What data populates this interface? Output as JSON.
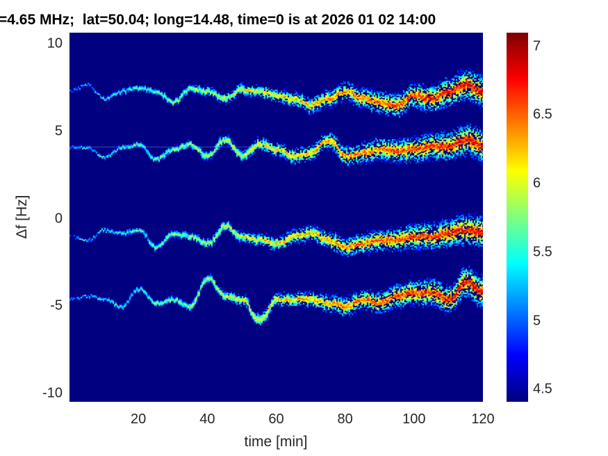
{
  "chart_data": {
    "type": "heatmap",
    "title": "=4.65 MHz;  lat=50.04; long=14.48, time=0 is at 2026 01 02 14:00",
    "xlabel": "time [min]",
    "ylabel": "Δf [Hz]",
    "xlim": [
      0,
      120
    ],
    "ylim": [
      -10.48,
      10.64
    ],
    "xticks": [
      20,
      40,
      60,
      80,
      100,
      120
    ],
    "yticks": [
      10,
      5,
      0,
      -5,
      -10
    ],
    "xtick_labels": [
      "20",
      "40",
      "60",
      "80",
      "100",
      "120"
    ],
    "ytick_labels": [
      "10",
      "5",
      "0",
      "-5",
      "-10"
    ],
    "colormap": "jet",
    "clim": [
      4.41,
      7.1
    ],
    "colorbar_ticks": [
      7,
      6.5,
      6,
      5.5,
      5,
      4.5
    ],
    "colorbar_tick_labels": [
      "7",
      "6.5",
      "6",
      "5.5",
      "5",
      "4.5"
    ],
    "trace_times": [
      0,
      5,
      10,
      15,
      20,
      25,
      30,
      35,
      40,
      45,
      50,
      55,
      60,
      65,
      70,
      75,
      80,
      85,
      90,
      95,
      100,
      105,
      110,
      115,
      120
    ],
    "traces": [
      {
        "name": "trace-1",
        "df": [
          7.3,
          7.7,
          6.9,
          7.3,
          7.5,
          7.3,
          6.7,
          7.5,
          7.3,
          6.9,
          7.4,
          7.3,
          7.1,
          6.9,
          6.5,
          6.9,
          7.3,
          6.9,
          6.7,
          6.5,
          7.1,
          6.9,
          7.3,
          7.7,
          7.3
        ]
      },
      {
        "name": "trace-2",
        "df": [
          4.1,
          4.1,
          3.55,
          4.1,
          4.3,
          3.4,
          4.0,
          4.3,
          3.6,
          4.55,
          3.6,
          4.3,
          4.0,
          3.6,
          3.8,
          4.55,
          3.6,
          3.8,
          4.0,
          3.9,
          4.0,
          4.2,
          4.2,
          4.55,
          4.2
        ]
      },
      {
        "name": "trace-3",
        "df": [
          -1.0,
          -1.2,
          -0.6,
          -0.8,
          -0.6,
          -1.6,
          -0.8,
          -1.0,
          -1.4,
          -0.4,
          -1.0,
          -1.2,
          -1.4,
          -1.0,
          -0.8,
          -1.2,
          -1.6,
          -1.4,
          -1.2,
          -1.2,
          -1.0,
          -1.0,
          -0.8,
          -0.6,
          -0.8
        ]
      },
      {
        "name": "trace-4",
        "df": [
          -4.6,
          -4.4,
          -4.6,
          -5.0,
          -4.0,
          -4.8,
          -4.6,
          -5.0,
          -3.4,
          -4.4,
          -4.6,
          -5.8,
          -4.6,
          -4.6,
          -4.6,
          -4.8,
          -5.0,
          -4.6,
          -4.8,
          -4.4,
          -4.2,
          -4.2,
          -4.6,
          -3.6,
          -4.2
        ]
      }
    ],
    "trace_intensity_range": [
      5.3,
      6.9
    ]
  }
}
